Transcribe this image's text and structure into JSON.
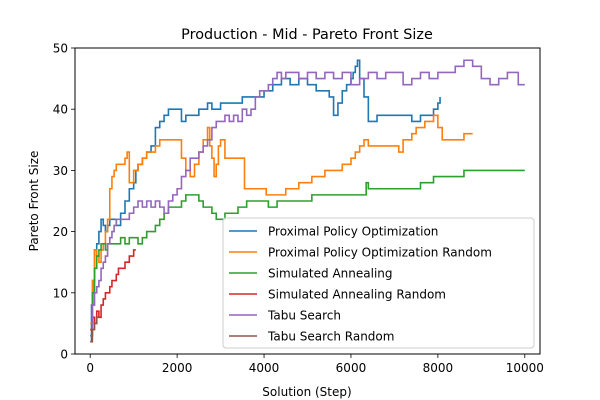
{
  "chart_data": {
    "type": "line",
    "title": "Production - Mid - Pareto Front Size",
    "xlabel": "Solution (Step)",
    "ylabel": "Pareto Front Size",
    "xlim": [
      -350,
      10350
    ],
    "ylim": [
      0,
      50
    ],
    "xticks": [
      0,
      2000,
      4000,
      6000,
      8000,
      10000
    ],
    "yticks": [
      0,
      10,
      20,
      30,
      40,
      50
    ],
    "xtick_labels": [
      "0",
      "2000",
      "4000",
      "6000",
      "8000",
      "10000"
    ],
    "ytick_labels": [
      "0",
      "10",
      "20",
      "30",
      "40",
      "50"
    ],
    "grid": false,
    "legend_position": "lower-right",
    "series": [
      {
        "name": "Proximal Policy Optimization",
        "color": "#1f77b4",
        "points": [
          [
            0,
            2
          ],
          [
            30,
            8
          ],
          [
            60,
            12
          ],
          [
            100,
            17
          ],
          [
            150,
            18
          ],
          [
            200,
            20
          ],
          [
            250,
            22
          ],
          [
            300,
            21
          ],
          [
            350,
            20
          ],
          [
            400,
            21
          ],
          [
            450,
            22
          ],
          [
            500,
            22
          ],
          [
            600,
            21
          ],
          [
            700,
            23
          ],
          [
            800,
            25
          ],
          [
            900,
            27
          ],
          [
            1000,
            28
          ],
          [
            1050,
            30
          ],
          [
            1100,
            31
          ],
          [
            1200,
            32
          ],
          [
            1300,
            33
          ],
          [
            1400,
            34
          ],
          [
            1500,
            37
          ],
          [
            1600,
            38
          ],
          [
            1700,
            39
          ],
          [
            1800,
            40
          ],
          [
            2000,
            40
          ],
          [
            2100,
            38
          ],
          [
            2200,
            39
          ],
          [
            2400,
            39
          ],
          [
            2500,
            40
          ],
          [
            2700,
            41
          ],
          [
            2800,
            40
          ],
          [
            3000,
            41
          ],
          [
            3300,
            41
          ],
          [
            3500,
            42
          ],
          [
            3800,
            42
          ],
          [
            4000,
            43
          ],
          [
            4200,
            44
          ],
          [
            4400,
            45
          ],
          [
            4600,
            44
          ],
          [
            4800,
            45
          ],
          [
            5000,
            44
          ],
          [
            5200,
            43
          ],
          [
            5400,
            43
          ],
          [
            5500,
            42
          ],
          [
            5600,
            39
          ],
          [
            5700,
            41
          ],
          [
            5800,
            43
          ],
          [
            5900,
            44
          ],
          [
            6000,
            45
          ],
          [
            6050,
            46
          ],
          [
            6100,
            47
          ],
          [
            6150,
            48
          ],
          [
            6200,
            45
          ],
          [
            6300,
            42
          ],
          [
            6400,
            38
          ],
          [
            6600,
            39
          ],
          [
            7300,
            39
          ],
          [
            7400,
            38
          ],
          [
            7600,
            39
          ],
          [
            7900,
            40
          ],
          [
            8000,
            41
          ],
          [
            8050,
            42
          ]
        ]
      },
      {
        "name": "Proximal Policy Optimization Random",
        "color": "#ff7f0e",
        "points": [
          [
            0,
            5
          ],
          [
            50,
            12
          ],
          [
            100,
            17
          ],
          [
            150,
            16
          ],
          [
            200,
            15
          ],
          [
            250,
            17
          ],
          [
            300,
            18
          ],
          [
            350,
            20
          ],
          [
            400,
            22
          ],
          [
            450,
            27
          ],
          [
            500,
            29
          ],
          [
            550,
            30
          ],
          [
            600,
            31
          ],
          [
            700,
            31
          ],
          [
            800,
            32
          ],
          [
            850,
            33
          ],
          [
            900,
            28
          ],
          [
            1000,
            30
          ],
          [
            1100,
            31
          ],
          [
            1200,
            32
          ],
          [
            1300,
            33
          ],
          [
            1400,
            33
          ],
          [
            1500,
            34
          ],
          [
            1600,
            35
          ],
          [
            1700,
            35
          ],
          [
            2000,
            35
          ],
          [
            2100,
            32
          ],
          [
            2200,
            30
          ],
          [
            2300,
            29
          ],
          [
            2400,
            31
          ],
          [
            2500,
            33
          ],
          [
            2600,
            35
          ],
          [
            2700,
            37
          ],
          [
            2750,
            34
          ],
          [
            2800,
            32
          ],
          [
            2850,
            29
          ],
          [
            2900,
            31
          ],
          [
            2950,
            34
          ],
          [
            3000,
            35
          ],
          [
            3100,
            32
          ],
          [
            3500,
            32
          ],
          [
            3550,
            27
          ],
          [
            4000,
            27
          ],
          [
            4050,
            26
          ],
          [
            4400,
            26
          ],
          [
            4500,
            27
          ],
          [
            4800,
            28
          ],
          [
            5000,
            28
          ],
          [
            5100,
            29
          ],
          [
            5300,
            29
          ],
          [
            5400,
            30
          ],
          [
            5700,
            30
          ],
          [
            5800,
            31
          ],
          [
            6000,
            32
          ],
          [
            6100,
            33
          ],
          [
            6200,
            34
          ],
          [
            6300,
            35
          ],
          [
            6400,
            34
          ],
          [
            7000,
            34
          ],
          [
            7100,
            33
          ],
          [
            7200,
            35
          ],
          [
            7400,
            36
          ],
          [
            7500,
            37
          ],
          [
            7700,
            38
          ],
          [
            7900,
            39
          ],
          [
            8000,
            37
          ],
          [
            8100,
            35
          ],
          [
            8500,
            35
          ],
          [
            8600,
            36
          ],
          [
            8800,
            36
          ]
        ]
      },
      {
        "name": "Simulated Annealing",
        "color": "#2ca02c",
        "points": [
          [
            0,
            3
          ],
          [
            50,
            10
          ],
          [
            100,
            14
          ],
          [
            150,
            16
          ],
          [
            200,
            17
          ],
          [
            250,
            18
          ],
          [
            300,
            18
          ],
          [
            350,
            17
          ],
          [
            400,
            18
          ],
          [
            500,
            18
          ],
          [
            600,
            18
          ],
          [
            700,
            19
          ],
          [
            800,
            18
          ],
          [
            900,
            19
          ],
          [
            1000,
            19
          ],
          [
            1100,
            18
          ],
          [
            1200,
            19
          ],
          [
            1300,
            20
          ],
          [
            1400,
            20
          ],
          [
            1500,
            21
          ],
          [
            1600,
            22
          ],
          [
            1700,
            23
          ],
          [
            1800,
            24
          ],
          [
            2000,
            24
          ],
          [
            2100,
            25
          ],
          [
            2200,
            26
          ],
          [
            2400,
            26
          ],
          [
            2500,
            25
          ],
          [
            2600,
            24
          ],
          [
            2700,
            24
          ],
          [
            2800,
            23
          ],
          [
            2900,
            22
          ],
          [
            3000,
            22
          ],
          [
            3100,
            23
          ],
          [
            3300,
            23
          ],
          [
            3400,
            24
          ],
          [
            3600,
            25
          ],
          [
            4000,
            25
          ],
          [
            4100,
            24
          ],
          [
            4200,
            24
          ],
          [
            4300,
            25
          ],
          [
            5000,
            25
          ],
          [
            5100,
            26
          ],
          [
            6300,
            26
          ],
          [
            6350,
            28
          ],
          [
            6400,
            27
          ],
          [
            7000,
            27
          ],
          [
            7500,
            27
          ],
          [
            7600,
            28
          ],
          [
            7800,
            28
          ],
          [
            7900,
            29
          ],
          [
            8000,
            29
          ],
          [
            8500,
            29
          ],
          [
            8600,
            30
          ],
          [
            10000,
            30
          ]
        ]
      },
      {
        "name": "Simulated Annealing Random",
        "color": "#d62728",
        "points": [
          [
            0,
            4
          ],
          [
            50,
            6
          ],
          [
            100,
            5
          ],
          [
            150,
            7
          ],
          [
            200,
            6
          ],
          [
            250,
            8
          ],
          [
            300,
            9
          ],
          [
            350,
            10
          ],
          [
            400,
            10
          ],
          [
            450,
            11
          ],
          [
            500,
            12
          ],
          [
            600,
            13
          ],
          [
            650,
            14
          ],
          [
            700,
            14
          ],
          [
            800,
            15
          ],
          [
            900,
            16
          ],
          [
            1000,
            17
          ],
          [
            1050,
            17
          ]
        ]
      },
      {
        "name": "Tabu Search",
        "color": "#9467bd",
        "points": [
          [
            0,
            3
          ],
          [
            50,
            8
          ],
          [
            100,
            10
          ],
          [
            150,
            11
          ],
          [
            200,
            12
          ],
          [
            250,
            14
          ],
          [
            300,
            15
          ],
          [
            350,
            16
          ],
          [
            400,
            18
          ],
          [
            450,
            19
          ],
          [
            500,
            20
          ],
          [
            550,
            21
          ],
          [
            600,
            22
          ],
          [
            700,
            22
          ],
          [
            800,
            22
          ],
          [
            900,
            23
          ],
          [
            1000,
            24
          ],
          [
            1100,
            25
          ],
          [
            1200,
            24
          ],
          [
            1300,
            25
          ],
          [
            1400,
            24
          ],
          [
            1500,
            25
          ],
          [
            1600,
            24
          ],
          [
            1700,
            23
          ],
          [
            1800,
            25
          ],
          [
            1900,
            26
          ],
          [
            2000,
            27
          ],
          [
            2100,
            29
          ],
          [
            2200,
            30
          ],
          [
            2300,
            32
          ],
          [
            2400,
            32
          ],
          [
            2500,
            33
          ],
          [
            2600,
            34
          ],
          [
            2700,
            35
          ],
          [
            2800,
            37
          ],
          [
            2900,
            38
          ],
          [
            3000,
            38
          ],
          [
            3100,
            39
          ],
          [
            3200,
            38
          ],
          [
            3300,
            39
          ],
          [
            3400,
            38
          ],
          [
            3500,
            40
          ],
          [
            3600,
            39
          ],
          [
            3700,
            40
          ],
          [
            3800,
            42
          ],
          [
            3900,
            43
          ],
          [
            4000,
            43
          ],
          [
            4100,
            44
          ],
          [
            4200,
            45
          ],
          [
            4300,
            46
          ],
          [
            4400,
            45
          ],
          [
            4500,
            46
          ],
          [
            4600,
            46
          ],
          [
            4800,
            45
          ],
          [
            5000,
            46
          ],
          [
            5200,
            45
          ],
          [
            5400,
            46
          ],
          [
            5600,
            45
          ],
          [
            5800,
            46
          ],
          [
            6000,
            44
          ],
          [
            6200,
            45
          ],
          [
            6400,
            46
          ],
          [
            6600,
            45
          ],
          [
            6800,
            46
          ],
          [
            7000,
            46
          ],
          [
            7200,
            44
          ],
          [
            7400,
            45
          ],
          [
            7600,
            46
          ],
          [
            7800,
            45
          ],
          [
            8000,
            46
          ],
          [
            8200,
            46
          ],
          [
            8400,
            47
          ],
          [
            8600,
            48
          ],
          [
            8800,
            47
          ],
          [
            9000,
            45
          ],
          [
            9200,
            44
          ],
          [
            9400,
            45
          ],
          [
            9600,
            46
          ],
          [
            9800,
            46
          ],
          [
            9850,
            44
          ],
          [
            10000,
            44
          ]
        ]
      },
      {
        "name": "Tabu Search Random",
        "color": "#8c564b",
        "points": [
          [
            0,
            2
          ],
          [
            50,
            4
          ],
          [
            100,
            5
          ],
          [
            150,
            6
          ],
          [
            200,
            6
          ]
        ]
      }
    ]
  }
}
